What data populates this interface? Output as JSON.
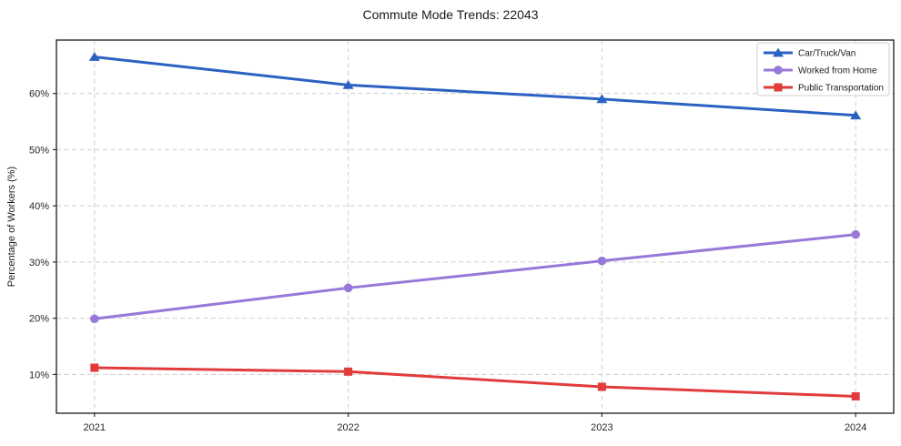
{
  "figure": {
    "title": "Commute Mode Trends: 22043",
    "background_color": "#ffffff"
  },
  "axes": {
    "ylabel": "Percentage of Workers (%)",
    "x_tick_labels": [
      "2021",
      "2022",
      "2023",
      "2024"
    ],
    "y_tick_labels": [
      "10%",
      "20%",
      "30%",
      "40%",
      "50%",
      "60%"
    ],
    "y_tick_values": [
      10,
      20,
      30,
      40,
      50,
      60
    ],
    "grid": "dashed",
    "grid_color": "#cccccc",
    "spine_color": "#1a1a1a",
    "tick_color": "#333333",
    "tick_label_color": "#262626"
  },
  "legend": {
    "position": "upper right",
    "border_color": "#cccccc",
    "background_color": "#ffffff",
    "entries": [
      "Car/Truck/Van",
      "Worked from Home",
      "Public Transportation"
    ]
  },
  "chart_data": {
    "type": "line",
    "title": "Commute Mode Trends: 22043",
    "xlabel": "",
    "ylabel": "Percentage of Workers (%)",
    "x": [
      2021,
      2022,
      2023,
      2024
    ],
    "xlim": [
      2020.85,
      2024.15
    ],
    "ylim": [
      3.1,
      69.5
    ],
    "grid": true,
    "legend_position": "upper right",
    "series": [
      {
        "name": "Car/Truck/Van",
        "values": [
          66.5,
          61.5,
          59.0,
          56.1
        ],
        "color": "#2b62c2",
        "marker": "triangle"
      },
      {
        "name": "Worked from Home",
        "values": [
          19.9,
          25.4,
          30.2,
          34.9
        ],
        "color": "#9878d8",
        "marker": "circle"
      },
      {
        "name": "Public Transportation",
        "values": [
          11.2,
          10.5,
          7.8,
          6.1
        ],
        "color": "#e23b3b",
        "marker": "square"
      }
    ]
  }
}
